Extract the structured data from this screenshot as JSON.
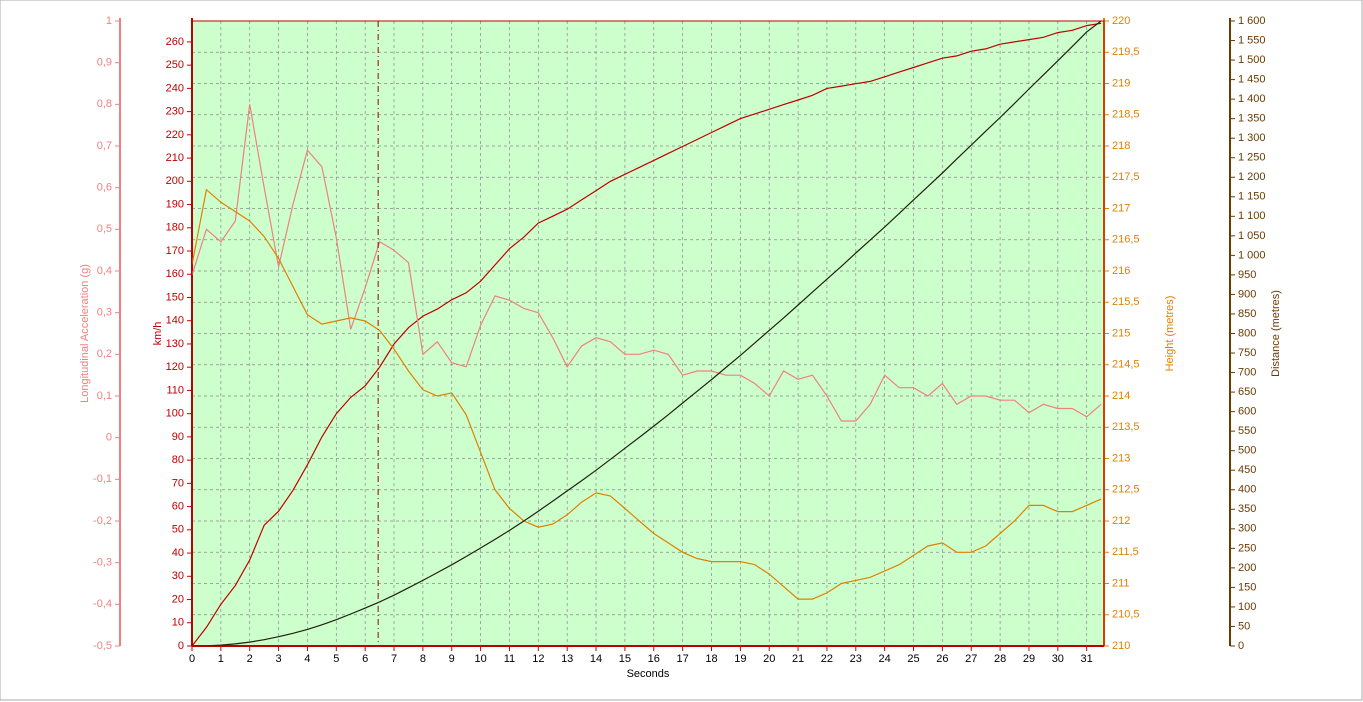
{
  "chart_data": {
    "type": "line",
    "xlabel": "Seconds",
    "xlim": [
      0,
      31.6
    ],
    "xticks": [
      0,
      1,
      2,
      3,
      4,
      5,
      6,
      7,
      8,
      9,
      10,
      11,
      12,
      13,
      14,
      15,
      16,
      17,
      18,
      19,
      20,
      21,
      22,
      23,
      24,
      25,
      26,
      27,
      28,
      29,
      30,
      31
    ],
    "grid": true,
    "grid_axis": "y2",
    "cursor_x": 6.45,
    "cursor_color": "#a00000",
    "background": "#ccffcc",
    "ylabel": "km/h",
    "ycolor": "#c00000",
    "ylim": [
      0,
      269
    ],
    "yticks": [
      0,
      10,
      20,
      30,
      40,
      50,
      60,
      70,
      80,
      90,
      100,
      110,
      120,
      130,
      140,
      150,
      160,
      170,
      180,
      190,
      200,
      210,
      220,
      230,
      240,
      250,
      260
    ],
    "y2label": "Height (metres)",
    "y2color": "#e08000",
    "y2lim": [
      210,
      220
    ],
    "y2ticks": [
      210,
      {
        "value": 210.5,
        "label": "210,5"
      },
      211,
      {
        "value": 211.5,
        "label": "211,5"
      },
      212,
      {
        "value": 212.5,
        "label": "212,5"
      },
      213,
      {
        "value": 213.5,
        "label": "213,5"
      },
      214,
      {
        "value": 214.5,
        "label": "214,5"
      },
      215,
      {
        "value": 215.5,
        "label": "215,5"
      },
      216,
      {
        "value": 216.5,
        "label": "216,5"
      },
      217,
      {
        "value": 217.5,
        "label": "217,5"
      },
      218,
      {
        "value": 218.5,
        "label": "218,5"
      },
      219,
      {
        "value": 219.5,
        "label": "219,5"
      },
      220
    ],
    "y3label": "Longitudinal Acceleration (g)",
    "y3color": "#f08080",
    "y3lim": [
      -0.5,
      1
    ],
    "y3ticks": [
      {
        "value": -0.5,
        "label": "-0,5"
      },
      {
        "value": -0.4,
        "label": "-0,4"
      },
      {
        "value": -0.3,
        "label": "-0,3"
      },
      {
        "value": -0.2,
        "label": "-0,2"
      },
      {
        "value": -0.1,
        "label": "-0,1"
      },
      0,
      {
        "value": 0.1,
        "label": "0,1"
      },
      {
        "value": 0.2,
        "label": "0,2"
      },
      {
        "value": 0.3,
        "label": "0,3"
      },
      {
        "value": 0.4,
        "label": "0,4"
      },
      {
        "value": 0.5,
        "label": "0,5"
      },
      {
        "value": 0.6,
        "label": "0,6"
      },
      {
        "value": 0.7,
        "label": "0,7"
      },
      {
        "value": 0.8,
        "label": "0,8"
      },
      {
        "value": 0.9,
        "label": "0,9"
      },
      1
    ],
    "y4label": "Distance (metres)",
    "y4color": "#6b3a00",
    "y4lim": [
      0,
      1600
    ],
    "y4ticks": [
      0,
      50,
      100,
      150,
      200,
      250,
      300,
      350,
      400,
      450,
      500,
      550,
      600,
      650,
      700,
      750,
      800,
      850,
      900,
      950,
      {
        "value": 1000,
        "label": "1 000"
      },
      {
        "value": 1050,
        "label": "1 050"
      },
      {
        "value": 1100,
        "label": "1 100"
      },
      {
        "value": 1150,
        "label": "1 150"
      },
      {
        "value": 1200,
        "label": "1 200"
      },
      {
        "value": 1250,
        "label": "1 250"
      },
      {
        "value": 1300,
        "label": "1 300"
      },
      {
        "value": 1350,
        "label": "1 350"
      },
      {
        "value": 1400,
        "label": "1 400"
      },
      {
        "value": 1450,
        "label": "1 450"
      },
      {
        "value": 1500,
        "label": "1 500"
      },
      {
        "value": 1550,
        "label": "1 550"
      },
      {
        "value": 1600,
        "label": "1 600"
      }
    ],
    "x": [
      0,
      0.5,
      1,
      1.5,
      2,
      2.5,
      3,
      3.5,
      4,
      4.5,
      5,
      5.5,
      6,
      6.5,
      7,
      7.5,
      8,
      8.5,
      9,
      9.5,
      10,
      10.5,
      11,
      11.5,
      12,
      12.5,
      13,
      13.5,
      14,
      14.5,
      15,
      15.5,
      16,
      16.5,
      17,
      17.5,
      18,
      18.5,
      19,
      19.5,
      20,
      20.5,
      21,
      21.5,
      22,
      22.5,
      23,
      23.5,
      24,
      24.5,
      25,
      25.5,
      26,
      26.5,
      27,
      27.5,
      28,
      28.5,
      29,
      29.5,
      30,
      30.5,
      31,
      31.5
    ],
    "series": [
      {
        "axis": "y",
        "color": "#c00000",
        "values": [
          0,
          8,
          18,
          26,
          37,
          52,
          58,
          67,
          78,
          90,
          100,
          107,
          112,
          120,
          130,
          137,
          142,
          145,
          149,
          152,
          157,
          164,
          171,
          176,
          182,
          185,
          188,
          192,
          196,
          200,
          203,
          206,
          209,
          212,
          215,
          218,
          221,
          224,
          227,
          229,
          231,
          233,
          235,
          237,
          240,
          241,
          242,
          243,
          245,
          247,
          249,
          251,
          253,
          254,
          256,
          257,
          259,
          260,
          261,
          262,
          264,
          265,
          267,
          268
        ]
      },
      {
        "axis": "y3",
        "color": "#f08080",
        "values": [
          0.39,
          0.5,
          0.47,
          0.52,
          0.8,
          0.6,
          0.41,
          0.56,
          0.69,
          0.65,
          0.48,
          0.26,
          0.36,
          0.47,
          0.45,
          0.42,
          0.2,
          0.23,
          0.18,
          0.17,
          0.27,
          0.34,
          0.33,
          0.31,
          0.3,
          0.24,
          0.17,
          0.22,
          0.24,
          0.23,
          0.2,
          0.2,
          0.21,
          0.2,
          0.15,
          0.16,
          0.16,
          0.15,
          0.15,
          0.13,
          0.1,
          0.16,
          0.14,
          0.15,
          0.1,
          0.04,
          0.04,
          0.08,
          0.15,
          0.12,
          0.12,
          0.1,
          0.13,
          0.08,
          0.1,
          0.1,
          0.09,
          0.09,
          0.06,
          0.08,
          0.07,
          0.07,
          0.05,
          0.08
        ]
      },
      {
        "axis": "y2",
        "color": "#e08000",
        "values": [
          216.1,
          217.3,
          217.1,
          216.95,
          216.8,
          216.55,
          216.2,
          215.75,
          215.3,
          215.15,
          215.2,
          215.25,
          215.2,
          215.05,
          214.75,
          214.4,
          214.1,
          214.0,
          214.05,
          213.7,
          213.1,
          212.5,
          212.2,
          212.0,
          211.9,
          211.95,
          212.1,
          212.3,
          212.45,
          212.4,
          212.2,
          212.0,
          211.8,
          211.65,
          211.5,
          211.4,
          211.35,
          211.35,
          211.35,
          211.3,
          211.15,
          210.95,
          210.75,
          210.75,
          210.85,
          211.0,
          211.05,
          211.1,
          211.2,
          211.3,
          211.45,
          211.6,
          211.65,
          211.5,
          211.5,
          211.6,
          211.8,
          212.0,
          212.25,
          212.25,
          212.15,
          212.15,
          212.25,
          212.35
        ]
      },
      {
        "axis": "y4",
        "color": "#202010",
        "values": [
          0,
          0.6,
          2.4,
          5.5,
          9.9,
          16.1,
          23.7,
          32.4,
          42.5,
          54.2,
          67.4,
          81.8,
          97,
          113,
          130,
          149,
          168,
          188,
          208,
          229,
          251,
          273,
          296,
          320,
          345,
          371,
          397,
          423,
          450,
          478,
          506,
          534,
          563,
          592,
          622,
          652,
          682,
          713,
          744,
          776,
          808,
          840,
          873,
          906,
          939,
          972,
          1006,
          1039,
          1073,
          1107,
          1142,
          1176,
          1211,
          1247,
          1282,
          1318,
          1353,
          1389,
          1426,
          1462,
          1498,
          1535,
          1572,
          1600
        ]
      }
    ]
  }
}
